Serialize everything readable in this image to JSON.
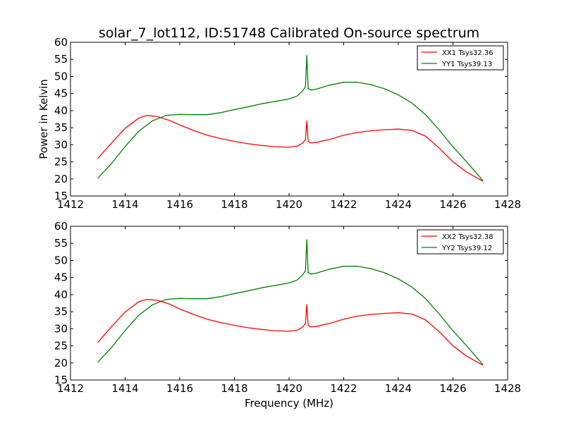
{
  "chart_data": [
    {
      "type": "line",
      "title": "solar_7_lot112, ID:51748 Calibrated On-source spectrum",
      "xlabel": "",
      "ylabel": "Power in Kelvin",
      "xlim": [
        1412,
        1428
      ],
      "ylim": [
        15,
        60
      ],
      "xticks": [
        1412,
        1414,
        1416,
        1418,
        1420,
        1422,
        1424,
        1426,
        1428
      ],
      "yticks": [
        15,
        20,
        25,
        30,
        35,
        40,
        45,
        50,
        55,
        60
      ],
      "legend_position": "top-right",
      "series": [
        {
          "name": "XX1 Tsys32.36",
          "color": "#ff0000",
          "x": [
            1413.0,
            1413.5,
            1414.0,
            1414.5,
            1414.8,
            1415.2,
            1415.6,
            1416.0,
            1416.5,
            1417.0,
            1417.5,
            1418.0,
            1418.5,
            1419.0,
            1419.5,
            1420.0,
            1420.3,
            1420.5,
            1420.6,
            1420.65,
            1420.7,
            1420.8,
            1421.0,
            1421.5,
            1422.0,
            1422.5,
            1423.0,
            1423.5,
            1424.0,
            1424.5,
            1425.0,
            1425.5,
            1426.0,
            1426.5,
            1427.1
          ],
          "y": [
            26.0,
            30.5,
            34.8,
            37.8,
            38.6,
            38.2,
            37.2,
            35.8,
            34.2,
            32.8,
            31.8,
            31.0,
            30.3,
            29.8,
            29.4,
            29.3,
            29.6,
            30.5,
            31.5,
            37.0,
            31.0,
            30.5,
            30.7,
            31.6,
            32.8,
            33.6,
            34.1,
            34.4,
            34.6,
            34.2,
            32.5,
            29.0,
            25.0,
            22.0,
            19.3
          ]
        },
        {
          "name": "YY1 Tsys39.13",
          "color": "#008000",
          "x": [
            1413.0,
            1413.5,
            1414.0,
            1414.5,
            1415.0,
            1415.5,
            1416.0,
            1416.5,
            1417.0,
            1417.5,
            1418.0,
            1418.5,
            1419.0,
            1419.5,
            1420.0,
            1420.3,
            1420.5,
            1420.6,
            1420.65,
            1420.7,
            1420.8,
            1421.0,
            1421.5,
            1422.0,
            1422.5,
            1423.0,
            1423.5,
            1424.0,
            1424.5,
            1425.0,
            1425.5,
            1426.0,
            1426.5,
            1427.1
          ],
          "y": [
            20.2,
            24.5,
            29.5,
            34.0,
            37.0,
            38.6,
            38.9,
            38.8,
            38.8,
            39.4,
            40.3,
            41.1,
            42.0,
            42.7,
            43.4,
            44.3,
            45.8,
            47.0,
            56.2,
            46.5,
            46.0,
            46.3,
            47.5,
            48.3,
            48.3,
            47.6,
            46.4,
            44.6,
            42.2,
            38.8,
            34.3,
            29.4,
            25.0,
            19.5
          ]
        }
      ]
    },
    {
      "type": "line",
      "title": "",
      "xlabel": "Frequency (MHz)",
      "ylabel": "",
      "xlim": [
        1412,
        1428
      ],
      "ylim": [
        15,
        60
      ],
      "xticks": [
        1412,
        1414,
        1416,
        1418,
        1420,
        1422,
        1424,
        1426,
        1428
      ],
      "yticks": [
        15,
        20,
        25,
        30,
        35,
        40,
        45,
        50,
        55,
        60
      ],
      "legend_position": "top-right",
      "series": [
        {
          "name": "XX2 Tsys32.38",
          "color": "#ff0000",
          "x": [
            1413.0,
            1413.5,
            1414.0,
            1414.5,
            1414.8,
            1415.2,
            1415.6,
            1416.0,
            1416.5,
            1417.0,
            1417.5,
            1418.0,
            1418.5,
            1419.0,
            1419.5,
            1420.0,
            1420.3,
            1420.5,
            1420.6,
            1420.65,
            1420.7,
            1420.8,
            1421.0,
            1421.5,
            1422.0,
            1422.5,
            1423.0,
            1423.5,
            1424.0,
            1424.5,
            1425.0,
            1425.5,
            1426.0,
            1426.5,
            1427.1
          ],
          "y": [
            26.0,
            30.6,
            34.9,
            37.9,
            38.6,
            38.3,
            37.3,
            35.8,
            34.2,
            32.8,
            31.8,
            31.0,
            30.3,
            29.8,
            29.4,
            29.3,
            29.6,
            30.5,
            31.5,
            37.1,
            31.0,
            30.5,
            30.7,
            31.6,
            32.8,
            33.7,
            34.2,
            34.5,
            34.7,
            34.3,
            32.6,
            29.1,
            25.0,
            22.0,
            19.3
          ]
        },
        {
          "name": "YY2 Tsys39.12",
          "color": "#008000",
          "x": [
            1413.0,
            1413.5,
            1414.0,
            1414.5,
            1415.0,
            1415.5,
            1416.0,
            1416.5,
            1417.0,
            1417.5,
            1418.0,
            1418.5,
            1419.0,
            1419.5,
            1420.0,
            1420.3,
            1420.5,
            1420.6,
            1420.65,
            1420.7,
            1420.8,
            1421.0,
            1421.5,
            1422.0,
            1422.5,
            1423.0,
            1423.5,
            1424.0,
            1424.5,
            1425.0,
            1425.5,
            1426.0,
            1426.5,
            1427.1
          ],
          "y": [
            20.2,
            24.5,
            29.5,
            34.0,
            37.0,
            38.6,
            38.9,
            38.8,
            38.8,
            39.4,
            40.3,
            41.1,
            42.0,
            42.7,
            43.4,
            44.3,
            45.8,
            47.0,
            56.1,
            46.5,
            46.0,
            46.3,
            47.5,
            48.3,
            48.3,
            47.6,
            46.4,
            44.6,
            42.2,
            38.8,
            34.3,
            29.4,
            25.0,
            19.5
          ]
        }
      ]
    }
  ]
}
